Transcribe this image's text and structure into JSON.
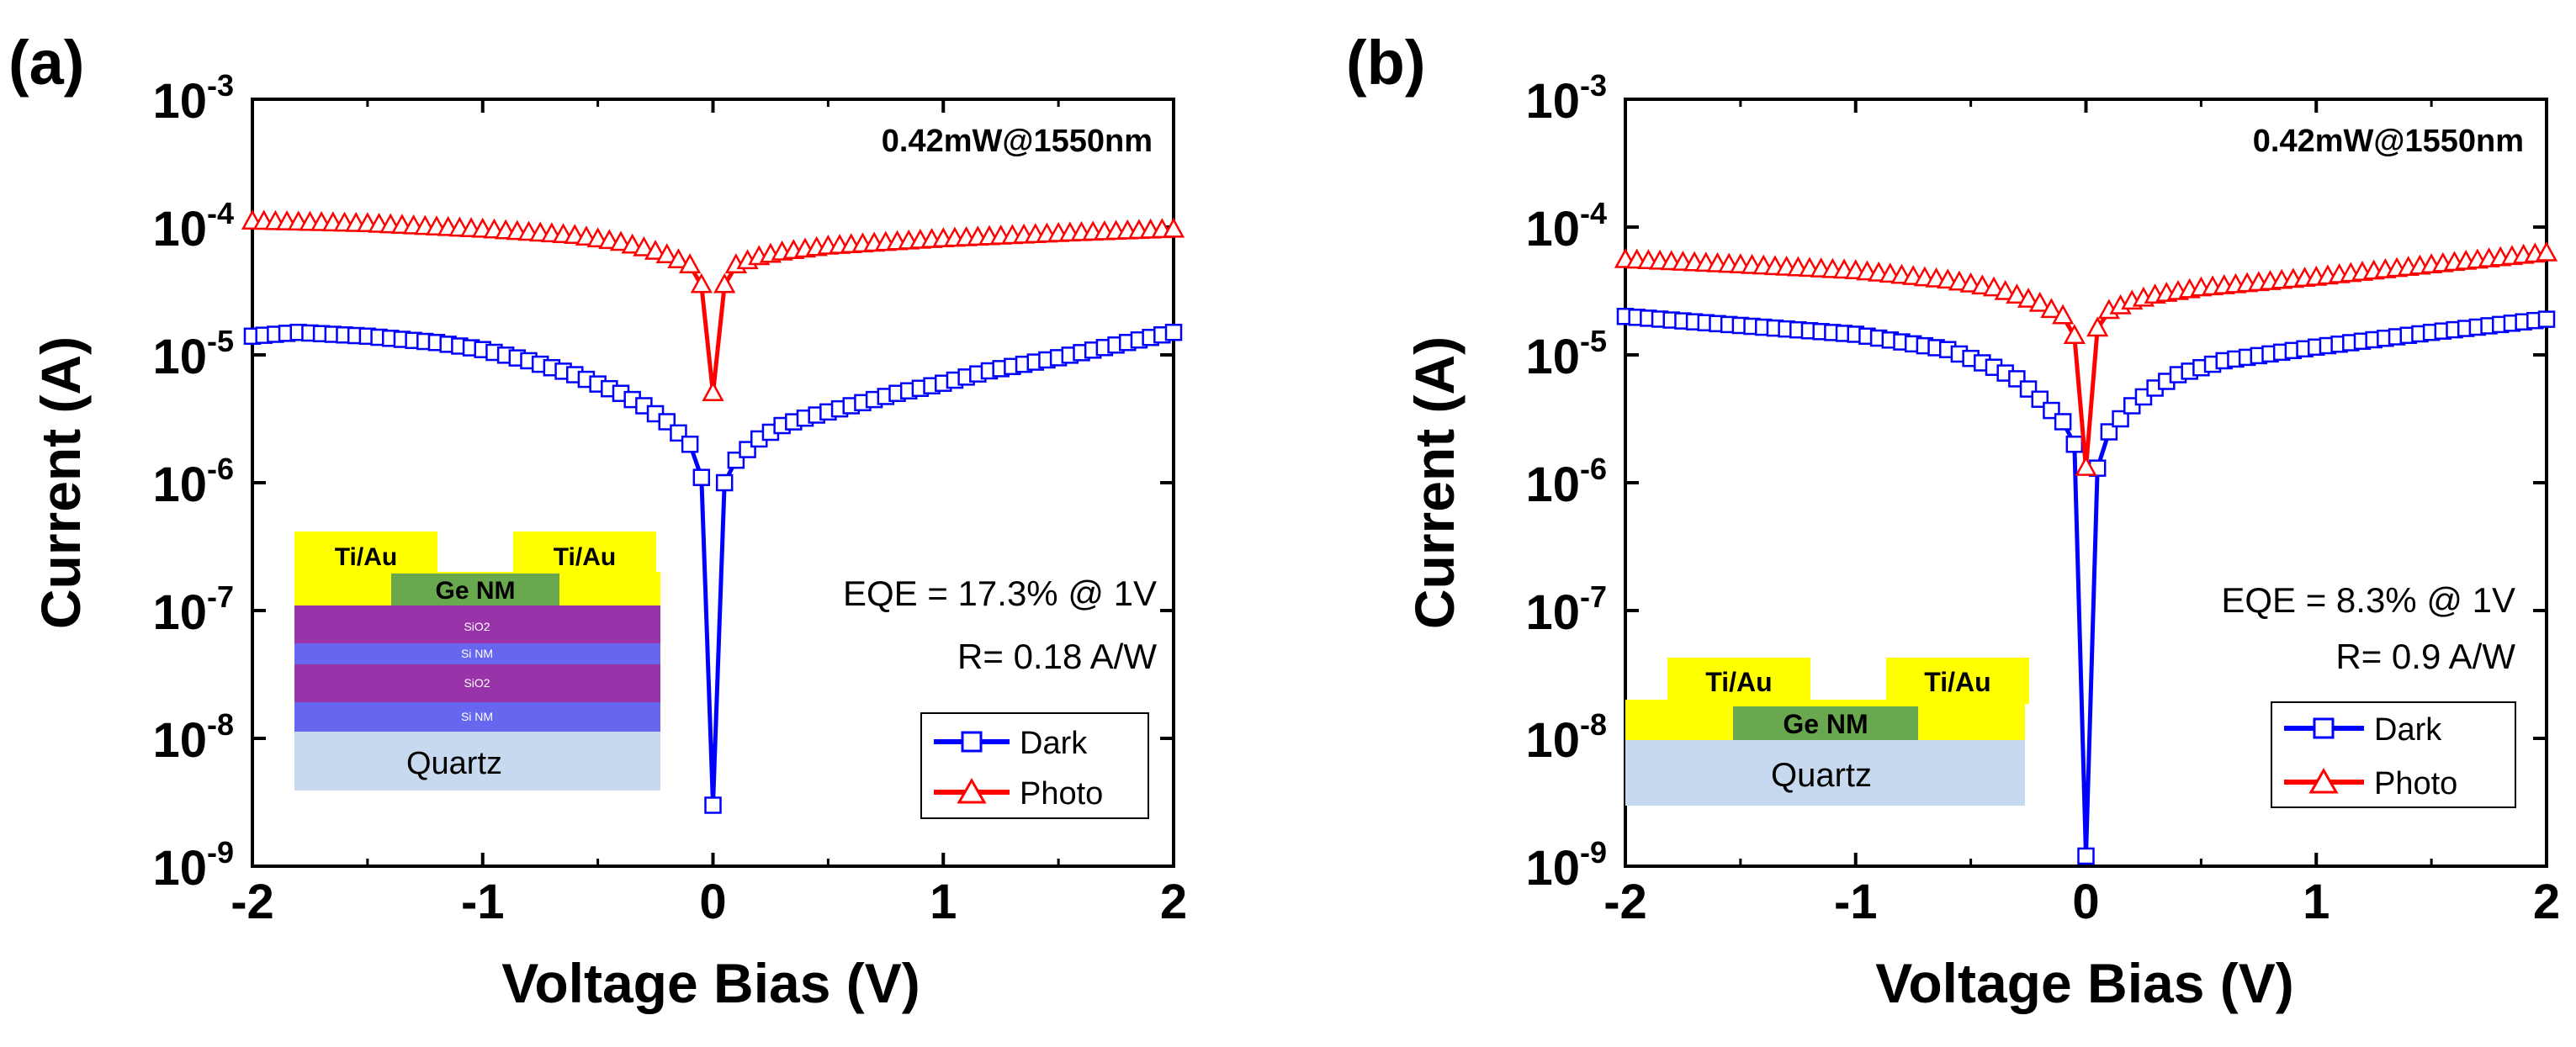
{
  "figure": {
    "panels": [
      {
        "panel_label": "(a)",
        "power_label": "0.42mW@1550nm",
        "eqe_text": "EQE = 17.3% @ 1V",
        "r_text": "R= 0.18 A/W",
        "inset": {
          "contact_left": "Ti/Au",
          "contact_right": "Ti/Au",
          "ge_label": "Ge NM",
          "layers": [
            "SiO2",
            "Si NM",
            "SiO2",
            "Si NM"
          ],
          "substrate": "Quartz"
        }
      },
      {
        "panel_label": "(b)",
        "power_label": "0.42mW@1550nm",
        "eqe_text": "EQE = 8.3% @ 1V",
        "r_text": "R= 0.9 A/W",
        "inset": {
          "contact_left": "Ti/Au",
          "contact_right": "Ti/Au",
          "ge_label": "Ge NM",
          "layers": [],
          "substrate": "Quartz"
        }
      }
    ],
    "colors": {
      "dark": "#0000ff",
      "photo": "#ff0000",
      "gold": "#ffff00",
      "ge": "#6aa84f",
      "sio2": "#9933aa",
      "sinm": "#6666ee",
      "quartz": "#c7d9ee"
    }
  },
  "chart_data": [
    {
      "type": "line",
      "title": "",
      "xlabel": "Voltage Bias (V)",
      "ylabel": "Current (A)",
      "xlim": [
        -2,
        2
      ],
      "ylim": [
        1e-09,
        0.001
      ],
      "yscale": "log",
      "x_ticks": [
        "-2",
        "-1",
        "0",
        "1",
        "2"
      ],
      "y_ticks": [
        {
          "base": "10",
          "exp": "-9"
        },
        {
          "base": "10",
          "exp": "-8"
        },
        {
          "base": "10",
          "exp": "-7"
        },
        {
          "base": "10",
          "exp": "-6"
        },
        {
          "base": "10",
          "exp": "-5"
        },
        {
          "base": "10",
          "exp": "-4"
        },
        {
          "base": "10",
          "exp": "-3"
        }
      ],
      "legend_position": "bottom-right",
      "series": [
        {
          "name": "Dark",
          "marker": "square",
          "x": [
            -2.0,
            -1.8,
            -1.5,
            -1.2,
            -1.0,
            -0.8,
            -0.6,
            -0.4,
            -0.3,
            -0.2,
            -0.1,
            -0.05,
            0.0,
            0.05,
            0.1,
            0.2,
            0.3,
            0.4,
            0.6,
            0.8,
            1.0,
            1.2,
            1.5,
            1.8,
            2.0
          ],
          "y": [
            1.4e-05,
            1.5e-05,
            1.4e-05,
            1.25e-05,
            1.1e-05,
            9e-06,
            7e-06,
            5e-06,
            4e-06,
            3e-06,
            2e-06,
            1.1e-06,
            3e-09,
            1e-06,
            1.5e-06,
            2.2e-06,
            2.8e-06,
            3.2e-06,
            4e-06,
            5e-06,
            6e-06,
            7.5e-06,
            9.5e-06,
            1.25e-05,
            1.5e-05
          ]
        },
        {
          "name": "Photo",
          "marker": "triangle",
          "x": [
            -2.0,
            -1.5,
            -1.0,
            -0.6,
            -0.4,
            -0.3,
            -0.2,
            -0.1,
            -0.05,
            0.0,
            0.05,
            0.1,
            0.2,
            0.3,
            0.5,
            1.0,
            1.5,
            2.0
          ],
          "y": [
            0.00011,
            0.000105,
            9.5e-05,
            8.5e-05,
            7.5e-05,
            6.8e-05,
            6e-05,
            5e-05,
            3.5e-05,
            5e-06,
            3.5e-05,
            5e-05,
            5.8e-05,
            6.3e-05,
            7e-05,
            8e-05,
            8.8e-05,
            9.5e-05
          ]
        }
      ]
    },
    {
      "type": "line",
      "title": "",
      "xlabel": "Voltage Bias (V)",
      "ylabel": "Current (A)",
      "xlim": [
        -2,
        2
      ],
      "ylim": [
        1e-09,
        0.001
      ],
      "yscale": "log",
      "x_ticks": [
        "-2",
        "-1",
        "0",
        "1",
        "2"
      ],
      "y_ticks": [
        {
          "base": "10",
          "exp": "-9"
        },
        {
          "base": "10",
          "exp": "-8"
        },
        {
          "base": "10",
          "exp": "-7"
        },
        {
          "base": "10",
          "exp": "-6"
        },
        {
          "base": "10",
          "exp": "-5"
        },
        {
          "base": "10",
          "exp": "-4"
        },
        {
          "base": "10",
          "exp": "-3"
        }
      ],
      "legend_position": "bottom-right",
      "series": [
        {
          "name": "Dark",
          "marker": "square",
          "x": [
            -2.0,
            -1.5,
            -1.0,
            -0.6,
            -0.4,
            -0.3,
            -0.2,
            -0.1,
            -0.05,
            0.0,
            0.05,
            0.1,
            0.2,
            0.3,
            0.4,
            0.6,
            1.0,
            1.5,
            2.0
          ],
          "y": [
            2e-05,
            1.7e-05,
            1.45e-05,
            1.1e-05,
            8e-06,
            6.5e-06,
            4.5e-06,
            3e-06,
            2e-06,
            1.2e-09,
            1.3e-06,
            2.5e-06,
            4e-06,
            5.5e-06,
            7e-06,
            9e-06,
            1.15e-05,
            1.5e-05,
            1.9e-05
          ]
        },
        {
          "name": "Photo",
          "marker": "triangle",
          "x": [
            -2.0,
            -1.5,
            -1.0,
            -0.6,
            -0.4,
            -0.3,
            -0.2,
            -0.1,
            -0.05,
            0.0,
            0.05,
            0.1,
            0.2,
            0.3,
            0.5,
            1.0,
            1.5,
            2.0
          ],
          "y": [
            5.5e-05,
            5e-05,
            4.5e-05,
            3.8e-05,
            3.3e-05,
            2.9e-05,
            2.5e-05,
            2e-05,
            1.4e-05,
            1.3e-06,
            1.6e-05,
            2.2e-05,
            2.6e-05,
            2.9e-05,
            3.3e-05,
            4e-05,
            5e-05,
            6.2e-05
          ]
        }
      ]
    }
  ]
}
